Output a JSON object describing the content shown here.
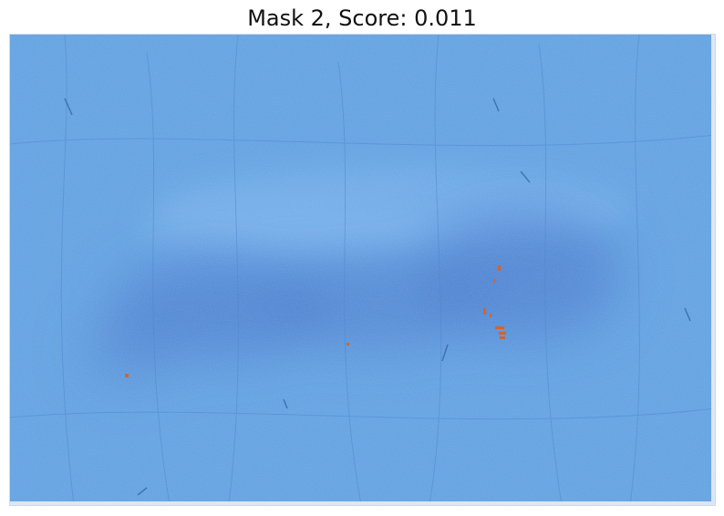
{
  "title": "Mask 2, Score: 0.011",
  "image": {
    "subject": "skin-surface-with-mask-overlay",
    "mask_color": "#5e9fe0",
    "shadow_color": "#3f6fc8",
    "highlight_color": "#7fb6ee",
    "spot_color": "#d2642c"
  }
}
